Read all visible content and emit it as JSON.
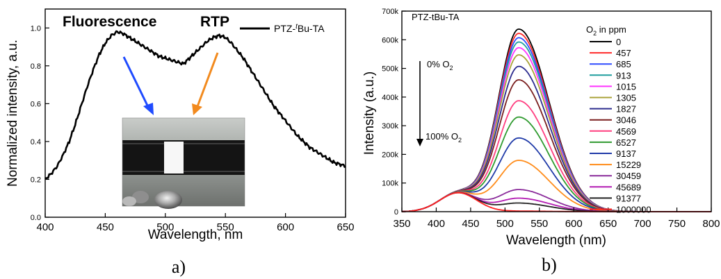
{
  "chart_data": [
    {
      "panel_label": "a)",
      "type": "line",
      "xlabel": "Wavelength, nm",
      "ylabel": "Normalized intensity, a.u.",
      "xlim": [
        400,
        650
      ],
      "ylim": [
        0.0,
        1.1
      ],
      "x_ticks": [
        400,
        450,
        500,
        550,
        600,
        650
      ],
      "y_ticks": [
        0.0,
        0.2,
        0.4,
        0.6,
        0.8,
        1.0
      ],
      "y_tick_labels": [
        "0.0",
        "0.2",
        "0.4",
        "0.6",
        "0.8",
        "1.0"
      ],
      "legend": {
        "position": "top-right",
        "label_prefix": "PTZ-",
        "label_italic": "t",
        "label_suffix": "Bu-TA"
      },
      "annotations": [
        {
          "text": "Fluorescence",
          "color": "#1a1aff"
        },
        {
          "text": "RTP",
          "color": "#f28a1e"
        }
      ],
      "inset": {
        "description": "photograph"
      },
      "series": [
        {
          "name": "PTZ-tBu-TA",
          "color": "#000000",
          "x": [
            400,
            405,
            410,
            415,
            420,
            425,
            430,
            435,
            440,
            445,
            450,
            455,
            460,
            465,
            470,
            475,
            480,
            485,
            490,
            495,
            500,
            505,
            510,
            515,
            520,
            525,
            530,
            535,
            540,
            545,
            550,
            555,
            560,
            565,
            570,
            575,
            580,
            585,
            590,
            595,
            600,
            605,
            610,
            615,
            620,
            625,
            630,
            635,
            640,
            645,
            650
          ],
          "y": [
            0.2,
            0.23,
            0.27,
            0.33,
            0.4,
            0.49,
            0.59,
            0.69,
            0.78,
            0.86,
            0.92,
            0.96,
            0.98,
            0.97,
            0.95,
            0.93,
            0.91,
            0.89,
            0.87,
            0.85,
            0.84,
            0.83,
            0.82,
            0.81,
            0.84,
            0.87,
            0.9,
            0.93,
            0.95,
            0.96,
            0.95,
            0.92,
            0.88,
            0.84,
            0.79,
            0.74,
            0.69,
            0.64,
            0.59,
            0.55,
            0.51,
            0.47,
            0.43,
            0.4,
            0.37,
            0.35,
            0.33,
            0.31,
            0.29,
            0.28,
            0.27
          ]
        }
      ]
    },
    {
      "panel_label": "b)",
      "type": "line",
      "title": "PTZ-tBu-TA",
      "xlabel": "Wavelength (nm)",
      "ylabel": "Intensity (a.u.)",
      "xlim": [
        350,
        800
      ],
      "ylim": [
        0,
        700000
      ],
      "x_ticks": [
        350,
        400,
        450,
        500,
        550,
        600,
        650,
        700,
        750,
        800
      ],
      "y_ticks": [
        0,
        100000,
        200000,
        300000,
        400000,
        500000,
        600000,
        700000
      ],
      "y_tick_labels": [
        "0",
        "100k",
        "200k",
        "300k",
        "400k",
        "500k",
        "600k",
        "700k"
      ],
      "legend": {
        "position": "top-right",
        "title_prefix": "O",
        "title_sub": "2",
        "title_suffix": " in ppm"
      },
      "arrow_annotation": {
        "top": {
          "prefix": "0% O",
          "sub": "2"
        },
        "bottom": {
          "prefix": "100% O",
          "sub": "2"
        }
      },
      "series": [
        {
          "name": "0",
          "color": "#000000",
          "peak": 655000
        },
        {
          "name": "457",
          "color": "#ff2a2a",
          "peak": 640000
        },
        {
          "name": "685",
          "color": "#2f4bff",
          "peak": 625000
        },
        {
          "name": "913",
          "color": "#1f9e9e",
          "peak": 610000
        },
        {
          "name": "1015",
          "color": "#ff33ff",
          "peak": 590000
        },
        {
          "name": "1305",
          "color": "#a8a238",
          "peak": 565000
        },
        {
          "name": "1827",
          "color": "#2b2b8e",
          "peak": 525000
        },
        {
          "name": "3046",
          "color": "#7a1e1e",
          "peak": 478000
        },
        {
          "name": "4569",
          "color": "#ff3d7f",
          "peak": 405000
        },
        {
          "name": "6527",
          "color": "#2e9a2e",
          "peak": 348000
        },
        {
          "name": "9137",
          "color": "#1f3aa8",
          "peak": 275000
        },
        {
          "name": "15229",
          "color": "#ff8c1a",
          "peak": 197000
        },
        {
          "name": "30459",
          "color": "#8a2a9a",
          "peak": 95000
        },
        {
          "name": "45689",
          "color": "#b21ab2",
          "peak": 65000
        },
        {
          "name": "91377",
          "color": "#222222",
          "peak": 48000
        },
        {
          "name": "1000000",
          "color": "#ff2020",
          "peak": 20000
        }
      ]
    }
  ]
}
